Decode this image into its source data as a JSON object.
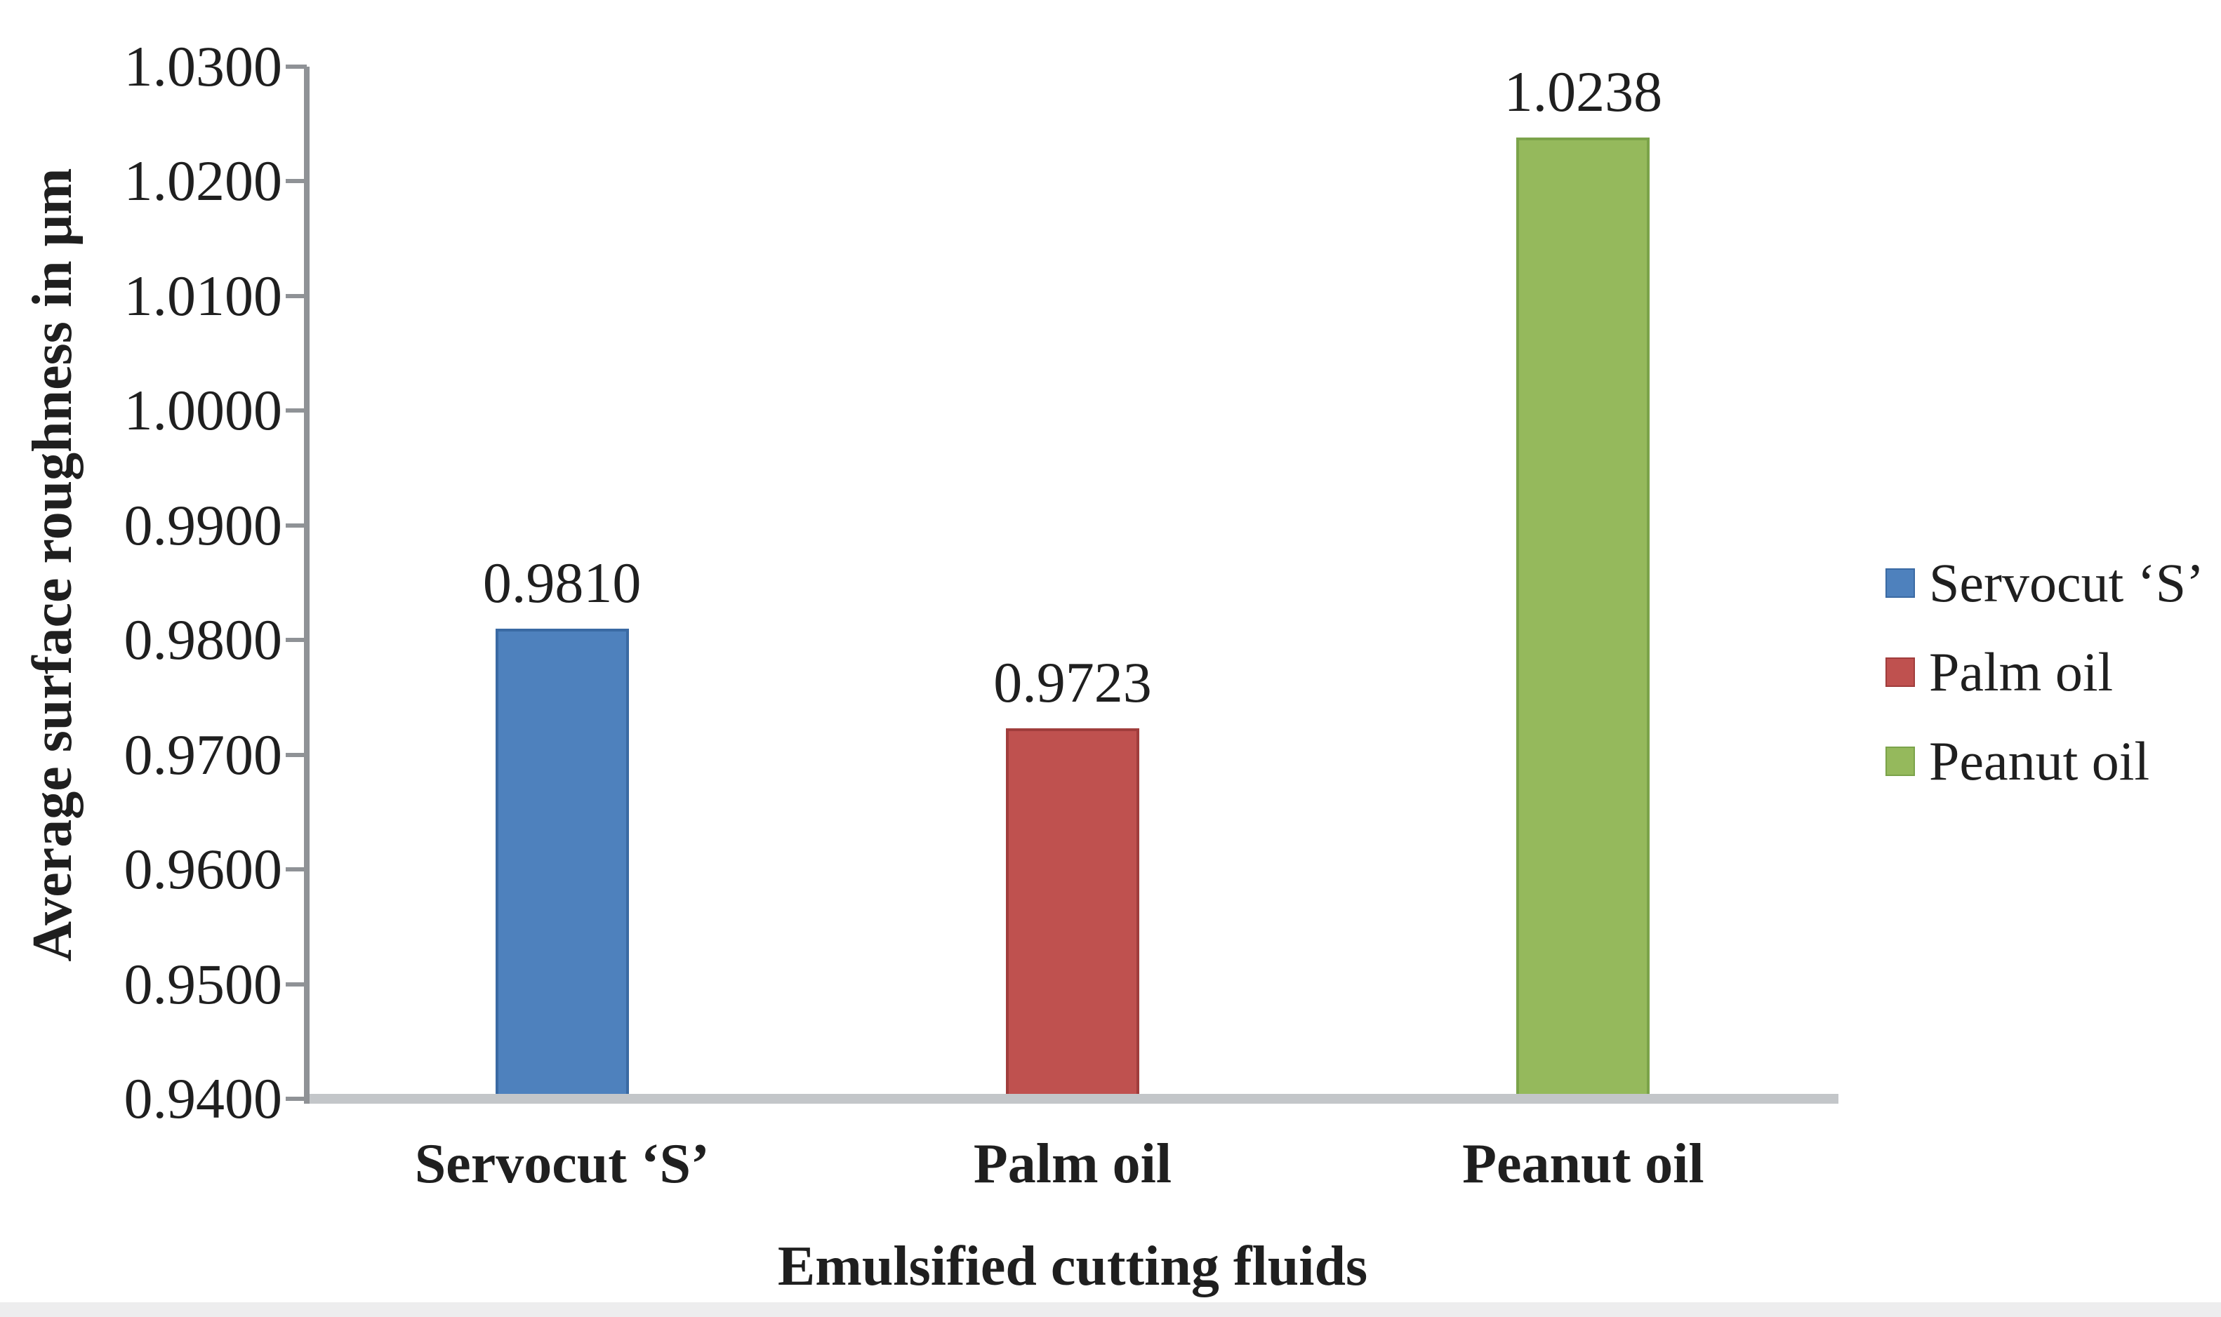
{
  "chart_data": {
    "type": "bar",
    "title": "",
    "xlabel": "Emulsified cutting fluids",
    "ylabel": "Average surface roughness in μm",
    "categories": [
      "Servocut ‘S’",
      "Palm oil",
      "Peanut oil"
    ],
    "values": [
      0.981,
      0.9723,
      1.0238
    ],
    "value_labels": [
      "0.9810",
      "0.9723",
      "1.0238"
    ],
    "bar_colors": [
      "#4e81bd",
      "#bf514f",
      "#95b95c"
    ],
    "bar_border_colors": [
      "#3a6aa3",
      "#a03d3c",
      "#7ba34a"
    ],
    "ylim": [
      0.94,
      1.03
    ],
    "ytick_step": 0.01,
    "yticks": [
      "1.0300",
      "1.0200",
      "1.0100",
      "1.0000",
      "0.9900",
      "0.9800",
      "0.9700",
      "0.9600",
      "0.9500",
      "0.9400"
    ],
    "grid": "off",
    "axis_color": "#8f9296",
    "baseline_color": "#c3c6c9",
    "legend": {
      "position": "right",
      "entries": [
        {
          "label": "Servocut ‘S’",
          "color": "#4e81bd"
        },
        {
          "label": "Palm oil",
          "color": "#bf514f"
        },
        {
          "label": "Peanut oil",
          "color": "#95b95c"
        }
      ]
    }
  }
}
